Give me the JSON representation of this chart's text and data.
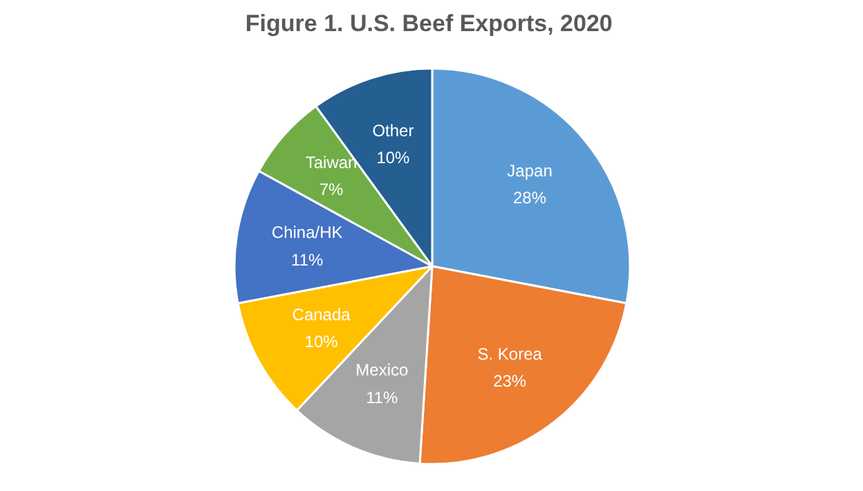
{
  "chart_data": {
    "type": "pie",
    "title": "Figure 1. U.S. Beef Exports,  2020",
    "categories": [
      "Japan",
      "S. Korea",
      "Mexico",
      "Canada",
      "China/HK",
      "Taiwan",
      "Other"
    ],
    "values": [
      28,
      23,
      11,
      10,
      11,
      7,
      10
    ],
    "colors": [
      "#5b9bd5",
      "#ed7d31",
      "#a5a5a5",
      "#ffc000",
      "#4472c4",
      "#70ad47",
      "#255e91"
    ],
    "value_labels": [
      "28%",
      "23%",
      "11%",
      "10%",
      "11%",
      "7%",
      "10%"
    ]
  }
}
